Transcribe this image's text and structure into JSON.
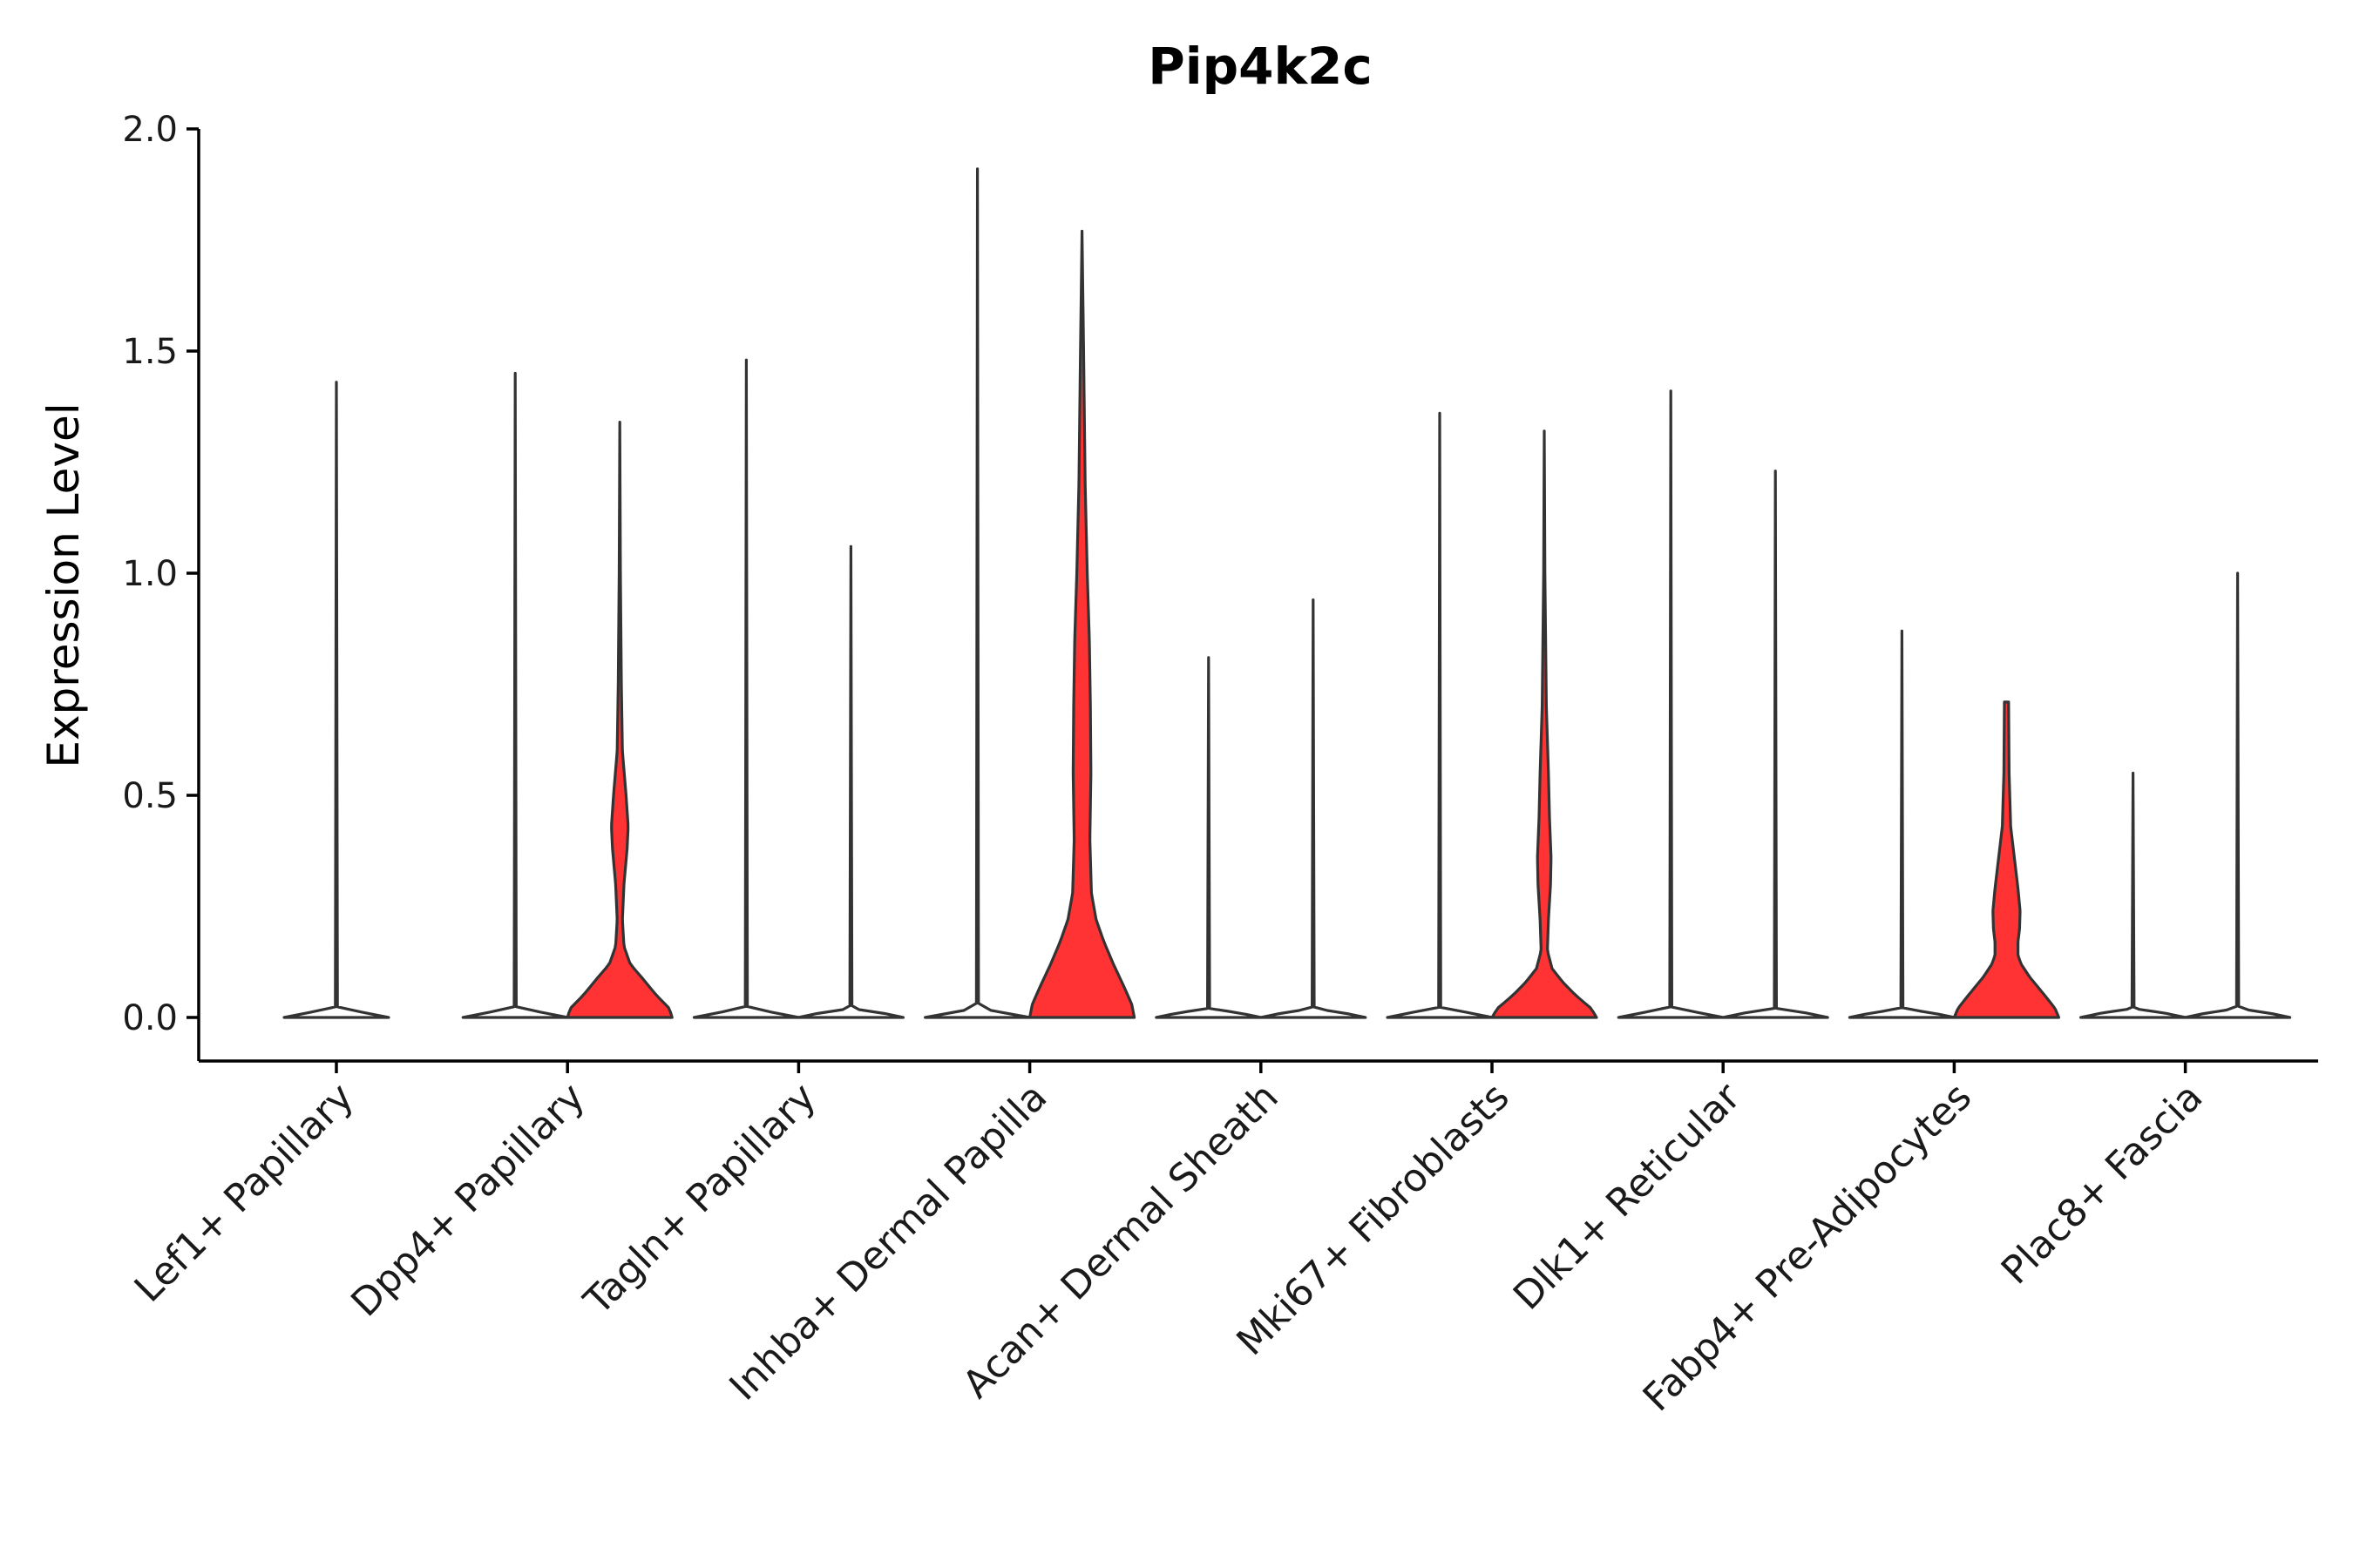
{
  "chart_data": {
    "type": "violin",
    "title": "Pip4k2c",
    "xlabel": "",
    "ylabel": "Expression Level",
    "ylim": [
      -0.1,
      2.0
    ],
    "yticks": [
      0.0,
      0.5,
      1.0,
      1.5,
      2.0
    ],
    "ytick_labels": [
      "0.0",
      "0.5",
      "1.0",
      "1.5",
      "2.0"
    ],
    "grid": false,
    "legend": "none",
    "colors": {
      "violin_fill": "#ff3333",
      "outline": "#333333",
      "axis": "#000000"
    },
    "groups": [
      {
        "category": "Lef1+ Papillary",
        "violins": [
          {
            "fill": false,
            "max": 1.43,
            "profile": [
              [
                0,
                1.0
              ],
              [
                0.01,
                0.6
              ],
              [
                0.02,
                0.02
              ],
              [
                1.43,
                0.0
              ]
            ]
          }
        ]
      },
      {
        "category": "Dpp4+ Papillary",
        "violins": [
          {
            "fill": false,
            "max": 1.45,
            "profile": [
              [
                0,
                1.0
              ],
              [
                0.01,
                0.6
              ],
              [
                0.02,
                0.02
              ],
              [
                1.45,
                0.0
              ]
            ]
          },
          {
            "fill": true,
            "max": 1.34,
            "profile": [
              [
                0,
                1.0
              ],
              [
                0.02,
                0.95
              ],
              [
                0.05,
                0.7
              ],
              [
                0.09,
                0.42
              ],
              [
                0.12,
                0.2
              ],
              [
                0.16,
                0.08
              ],
              [
                0.22,
                0.05
              ],
              [
                0.3,
                0.08
              ],
              [
                0.38,
                0.14
              ],
              [
                0.43,
                0.16
              ],
              [
                0.5,
                0.12
              ],
              [
                0.6,
                0.05
              ],
              [
                0.75,
                0.03
              ],
              [
                1.0,
                0.012
              ],
              [
                1.34,
                0.0
              ]
            ]
          }
        ]
      },
      {
        "category": "Tagln+ Papillary",
        "violins": [
          {
            "fill": false,
            "max": 1.48,
            "profile": [
              [
                0,
                1.0
              ],
              [
                0.01,
                0.6
              ],
              [
                0.02,
                0.02
              ],
              [
                1.48,
                0.0
              ]
            ]
          },
          {
            "fill": false,
            "max": 1.06,
            "profile": [
              [
                0,
                1.0
              ],
              [
                0.01,
                0.6
              ],
              [
                0.02,
                0.02
              ],
              [
                1.06,
                0.0
              ]
            ]
          }
        ]
      },
      {
        "category": "Inhba+ Dermal Papilla",
        "violins": [
          {
            "fill": false,
            "max": 1.91,
            "profile": [
              [
                0,
                1.0
              ],
              [
                0.01,
                0.6
              ],
              [
                0.02,
                0.02
              ],
              [
                1.91,
                0.0
              ]
            ]
          },
          {
            "fill": true,
            "max": 1.77,
            "profile": [
              [
                0,
                1.0
              ],
              [
                0.03,
                0.95
              ],
              [
                0.07,
                0.8
              ],
              [
                0.12,
                0.6
              ],
              [
                0.17,
                0.42
              ],
              [
                0.22,
                0.27
              ],
              [
                0.28,
                0.18
              ],
              [
                0.4,
                0.15
              ],
              [
                0.55,
                0.17
              ],
              [
                0.7,
                0.16
              ],
              [
                0.85,
                0.14
              ],
              [
                1.0,
                0.1
              ],
              [
                1.2,
                0.06
              ],
              [
                1.5,
                0.03
              ],
              [
                1.77,
                0.0
              ]
            ]
          }
        ]
      },
      {
        "category": "Acan+ Dermal Sheath",
        "violins": [
          {
            "fill": false,
            "max": 0.81,
            "profile": [
              [
                0,
                1.0
              ],
              [
                0.01,
                0.6
              ],
              [
                0.02,
                0.02
              ],
              [
                0.81,
                0.0
              ]
            ]
          },
          {
            "fill": false,
            "max": 0.94,
            "profile": [
              [
                0,
                1.0
              ],
              [
                0.01,
                0.6
              ],
              [
                0.02,
                0.02
              ],
              [
                0.94,
                0.0
              ]
            ]
          }
        ]
      },
      {
        "category": "Mki67+ Fibroblasts",
        "violins": [
          {
            "fill": false,
            "max": 1.36,
            "profile": [
              [
                0,
                1.0
              ],
              [
                0.01,
                0.6
              ],
              [
                0.02,
                0.02
              ],
              [
                1.36,
                0.0
              ]
            ]
          },
          {
            "fill": true,
            "max": 1.32,
            "profile": [
              [
                0,
                1.0
              ],
              [
                0.02,
                0.9
              ],
              [
                0.05,
                0.6
              ],
              [
                0.08,
                0.35
              ],
              [
                0.11,
                0.15
              ],
              [
                0.15,
                0.06
              ],
              [
                0.22,
                0.08
              ],
              [
                0.3,
                0.12
              ],
              [
                0.36,
                0.13
              ],
              [
                0.45,
                0.1
              ],
              [
                0.55,
                0.08
              ],
              [
                0.7,
                0.04
              ],
              [
                1.0,
                0.012
              ],
              [
                1.32,
                0.0
              ]
            ]
          }
        ]
      },
      {
        "category": "Dlk1+ Reticular",
        "violins": [
          {
            "fill": false,
            "max": 1.41,
            "profile": [
              [
                0,
                1.0
              ],
              [
                0.01,
                0.6
              ],
              [
                0.02,
                0.02
              ],
              [
                1.41,
                0.0
              ]
            ]
          },
          {
            "fill": false,
            "max": 1.23,
            "profile": [
              [
                0,
                1.0
              ],
              [
                0.01,
                0.6
              ],
              [
                0.02,
                0.02
              ],
              [
                1.23,
                0.0
              ]
            ]
          }
        ]
      },
      {
        "category": "Fabp4+ Pre-Adipocytes",
        "violins": [
          {
            "fill": false,
            "max": 0.87,
            "profile": [
              [
                0,
                1.0
              ],
              [
                0.01,
                0.6
              ],
              [
                0.02,
                0.02
              ],
              [
                0.87,
                0.0
              ]
            ]
          },
          {
            "fill": true,
            "max": 0.71,
            "profile": [
              [
                0,
                1.0
              ],
              [
                0.02,
                0.93
              ],
              [
                0.05,
                0.73
              ],
              [
                0.09,
                0.45
              ],
              [
                0.12,
                0.28
              ],
              [
                0.14,
                0.22
              ],
              [
                0.17,
                0.22
              ],
              [
                0.2,
                0.25
              ],
              [
                0.24,
                0.26
              ],
              [
                0.29,
                0.22
              ],
              [
                0.35,
                0.16
              ],
              [
                0.43,
                0.08
              ],
              [
                0.55,
                0.05
              ],
              [
                0.71,
                0.04
              ]
            ]
          }
        ]
      },
      {
        "category": "Plac8+ Fascia",
        "violins": [
          {
            "fill": false,
            "max": 0.55,
            "profile": [
              [
                0,
                1.0
              ],
              [
                0.01,
                0.6
              ],
              [
                0.02,
                0.02
              ],
              [
                0.55,
                0.0
              ]
            ]
          },
          {
            "fill": false,
            "max": 1.0,
            "profile": [
              [
                0,
                1.0
              ],
              [
                0.01,
                0.6
              ],
              [
                0.02,
                0.02
              ],
              [
                1.0,
                0.0
              ]
            ]
          }
        ]
      }
    ]
  }
}
